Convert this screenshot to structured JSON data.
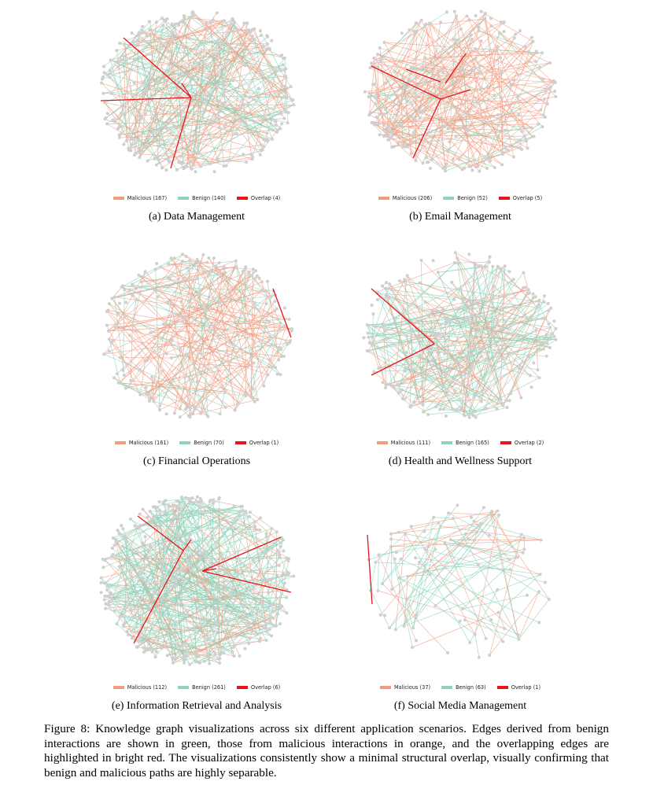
{
  "colors": {
    "malicious": "#f19b80",
    "benign": "#8fd3bd",
    "overlap": "#e8141a",
    "node": "#cfcfcf"
  },
  "legend_labels": {
    "malicious": "Malicious",
    "benign": "Benign",
    "overlap": "Overlap"
  },
  "panels": [
    {
      "caption": "(a) Data Management",
      "counts": {
        "malicious": 167,
        "benign": 140,
        "overlap": 4
      },
      "legend_text": {
        "malicious": "Malicious (167)",
        "benign": "Benign (140)",
        "overlap": "Overlap (4)"
      }
    },
    {
      "caption": "(b) Email Management",
      "counts": {
        "malicious": 206,
        "benign": 52,
        "overlap": 5
      },
      "legend_text": {
        "malicious": "Malicious (206)",
        "benign": "Benign (52)",
        "overlap": "Overlap (5)"
      }
    },
    {
      "caption": "(c) Financial Operations",
      "counts": {
        "malicious": 161,
        "benign": 70,
        "overlap": 1
      },
      "legend_text": {
        "malicious": "Malicious (161)",
        "benign": "Benign (70)",
        "overlap": "Overlap (1)"
      }
    },
    {
      "caption": "(d) Health and Wellness Support",
      "counts": {
        "malicious": 111,
        "benign": 165,
        "overlap": 2
      },
      "legend_text": {
        "malicious": "Malicious (111)",
        "benign": "Benign (165)",
        "overlap": "Overlap (2)"
      }
    },
    {
      "caption": "(e) Information Retrieval and Analysis",
      "counts": {
        "malicious": 112,
        "benign": 261,
        "overlap": 6
      },
      "legend_text": {
        "malicious": "Malicious (112)",
        "benign": "Benign (261)",
        "overlap": "Overlap (6)"
      }
    },
    {
      "caption": "(f) Social Media Management",
      "counts": {
        "malicious": 37,
        "benign": 63,
        "overlap": 1
      },
      "legend_text": {
        "malicious": "Malicious (37)",
        "benign": "Benign (63)",
        "overlap": "Overlap (1)"
      }
    }
  ],
  "figure_caption": "Figure 8: Knowledge graph visualizations across six different application scenarios. Edges derived from benign interactions are shown in green, those from malicious interactions in orange, and the overlapping edges are highlighted in bright red. The visualizations consistently show a minimal structural overlap, visually confirming that benign and malicious paths are highly separable."
}
